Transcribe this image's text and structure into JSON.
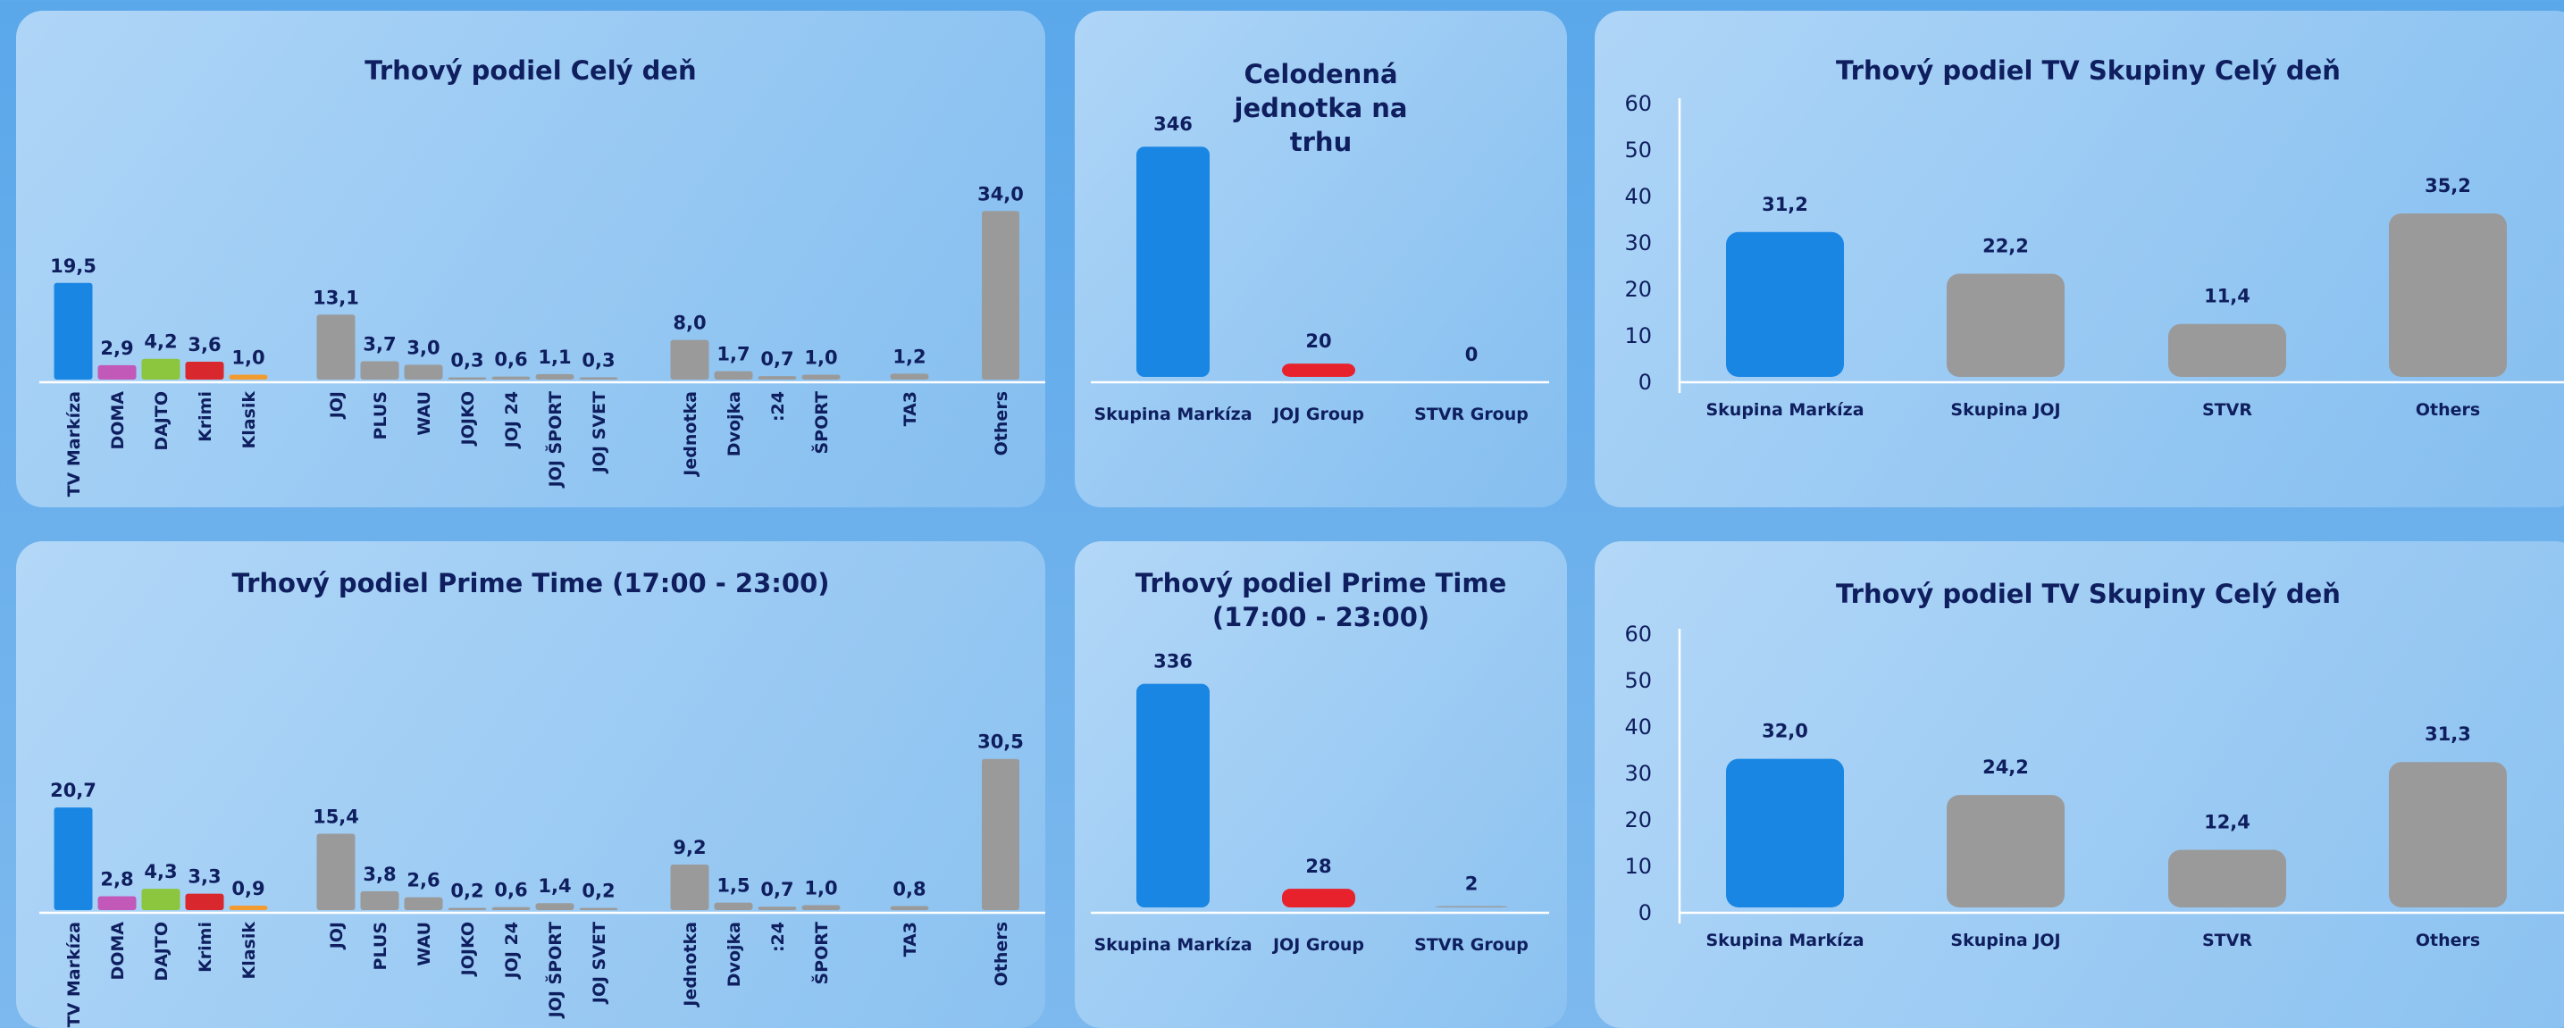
{
  "colors": {
    "markiza": "#1a86e3",
    "doma": "#c258b8",
    "dajto": "#8cc63f",
    "krimi": "#d9272e",
    "klasik": "#f29b30",
    "gray": "#9a9a9a",
    "joj_group": "#e8222c",
    "text": "#0f1e5e"
  },
  "chart_data": [
    {
      "type": "bar",
      "title": "Trhový podiel Celý deň",
      "categories": [
        "TV Markíza",
        "DOMA",
        "DAJTO",
        "Krimi",
        "Klasik",
        "JOJ",
        "PLUS",
        "WAU",
        "JOJKO",
        "JOJ 24",
        "JOJ ŠPORT",
        "JOJ SVET",
        "Jednotka",
        "Dvojka",
        ":24",
        "ŠPORT",
        "TA3",
        "Others"
      ],
      "values": [
        19.5,
        2.9,
        4.2,
        3.6,
        1.0,
        13.1,
        3.7,
        3.0,
        0.3,
        0.6,
        1.1,
        0.3,
        8.0,
        1.7,
        0.7,
        1.0,
        1.2,
        34.0
      ],
      "value_labels": [
        "19,5",
        "2,9",
        "4,2",
        "3,6",
        "1,0",
        "13,1",
        "3,7",
        "3,0",
        "0,3",
        "0,6",
        "1,1",
        "0,3",
        "8,0",
        "1,7",
        "0,7",
        "1,0",
        "1,2",
        "34,0"
      ],
      "colors": [
        "#1a86e3",
        "#c258b8",
        "#8cc63f",
        "#d9272e",
        "#f29b30",
        "#9a9a9a",
        "#9a9a9a",
        "#9a9a9a",
        "#9a9a9a",
        "#9a9a9a",
        "#9a9a9a",
        "#9a9a9a",
        "#9a9a9a",
        "#9a9a9a",
        "#9a9a9a",
        "#9a9a9a",
        "#9a9a9a",
        "#9a9a9a"
      ],
      "xlabel": "",
      "ylabel": "",
      "grid": false
    },
    {
      "type": "bar",
      "title": "Celodenná jednotka na trhu",
      "categories": [
        "Skupina Markíza",
        "JOJ Group",
        "STVR Group"
      ],
      "values": [
        346,
        20,
        0
      ],
      "value_labels": [
        "346",
        "20",
        "0"
      ],
      "colors": [
        "#1a86e3",
        "#e8222c",
        "#9a9a9a"
      ],
      "xlabel": "",
      "ylabel": "",
      "grid": false
    },
    {
      "type": "bar",
      "title": "Trhový podiel TV Skupiny Celý deň",
      "categories": [
        "Skupina Markíza",
        "Skupina JOJ",
        "STVR",
        "Others"
      ],
      "values": [
        31.2,
        22.2,
        11.4,
        35.2
      ],
      "value_labels": [
        "31,2",
        "22,2",
        "11,4",
        "35,2"
      ],
      "colors": [
        "#1a86e3",
        "#9a9a9a",
        "#9a9a9a",
        "#9a9a9a"
      ],
      "ylim": [
        0,
        60
      ],
      "yticks": [
        "0",
        "10",
        "20",
        "30",
        "40",
        "50",
        "60"
      ],
      "xlabel": "",
      "ylabel": "",
      "grid": false
    },
    {
      "type": "bar",
      "title": "Trhový podiel Prime Time (17:00 - 23:00)",
      "categories": [
        "TV Markíza",
        "DOMA",
        "DAJTO",
        "Krimi",
        "Klasik",
        "JOJ",
        "PLUS",
        "WAU",
        "JOJKO",
        "JOJ 24",
        "JOJ ŠPORT",
        "JOJ SVET",
        "Jednotka",
        "Dvojka",
        ":24",
        "ŠPORT",
        "TA3",
        "Others"
      ],
      "values": [
        20.7,
        2.8,
        4.3,
        3.3,
        0.9,
        15.4,
        3.8,
        2.6,
        0.2,
        0.6,
        1.4,
        0.2,
        9.2,
        1.5,
        0.7,
        1.0,
        0.8,
        30.5
      ],
      "value_labels": [
        "20,7",
        "2,8",
        "4,3",
        "3,3",
        "0,9",
        "15,4",
        "3,8",
        "2,6",
        "0,2",
        "0,6",
        "1,4",
        "0,2",
        "9,2",
        "1,5",
        "0,7",
        "1,0",
        "0,8",
        "30,5"
      ],
      "colors": [
        "#1a86e3",
        "#c258b8",
        "#8cc63f",
        "#d9272e",
        "#f29b30",
        "#9a9a9a",
        "#9a9a9a",
        "#9a9a9a",
        "#9a9a9a",
        "#9a9a9a",
        "#9a9a9a",
        "#9a9a9a",
        "#9a9a9a",
        "#9a9a9a",
        "#9a9a9a",
        "#9a9a9a",
        "#9a9a9a",
        "#9a9a9a"
      ],
      "xlabel": "",
      "ylabel": "",
      "grid": false
    },
    {
      "type": "bar",
      "title": "Trhový podiel Prime Time (17:00 - 23:00)",
      "categories": [
        "Skupina Markíza",
        "JOJ Group",
        "STVR Group"
      ],
      "values": [
        336,
        28,
        2
      ],
      "value_labels": [
        "336",
        "28",
        "2"
      ],
      "colors": [
        "#1a86e3",
        "#e8222c",
        "#9a9a9a"
      ],
      "xlabel": "",
      "ylabel": "",
      "grid": false
    },
    {
      "type": "bar",
      "title": "Trhový podiel TV Skupiny Celý deň",
      "categories": [
        "Skupina Markíza",
        "Skupina JOJ",
        "STVR",
        "Others"
      ],
      "values": [
        32.0,
        24.2,
        12.4,
        31.3
      ],
      "value_labels": [
        "32,0",
        "24,2",
        "12,4",
        "31,3"
      ],
      "colors": [
        "#1a86e3",
        "#9a9a9a",
        "#9a9a9a",
        "#9a9a9a"
      ],
      "ylim": [
        0,
        60
      ],
      "yticks": [
        "0",
        "10",
        "20",
        "30",
        "40",
        "50",
        "60"
      ],
      "xlabel": "",
      "ylabel": "",
      "grid": false
    }
  ]
}
